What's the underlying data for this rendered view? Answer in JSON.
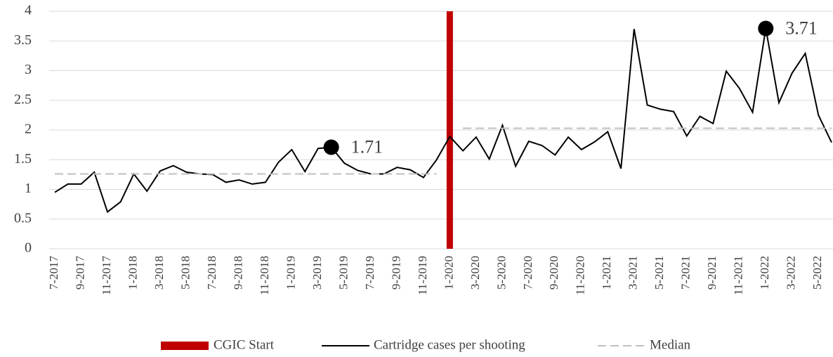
{
  "chart_data": {
    "type": "line",
    "categories": [
      "7-2017",
      null,
      "9-2017",
      null,
      "11-2017",
      null,
      "1-2018",
      null,
      "3-2018",
      null,
      "5-2018",
      null,
      "7-2018",
      null,
      "9-2018",
      null,
      "11-2018",
      null,
      "1-2019",
      null,
      "3-2019",
      null,
      "5-2019",
      null,
      "7-2019",
      null,
      "9-2019",
      null,
      "11-2019",
      null,
      "1-2020",
      null,
      "3-2020",
      null,
      "5-2020",
      null,
      "7-2020",
      null,
      "9-2020",
      null,
      "11-2020",
      null,
      "1-2021",
      null,
      "3-2021",
      null,
      "5-2021",
      null,
      "7-2021",
      null,
      "9-2021",
      null,
      "11-2021",
      null,
      "1-2022",
      null,
      "3-2022",
      null,
      "5-2022",
      null
    ],
    "series": [
      {
        "name": "Cartridge cases per shooting",
        "color": "#000000",
        "style": "solid",
        "values": [
          0.95,
          1.09,
          1.09,
          1.29,
          0.62,
          0.79,
          1.26,
          0.97,
          1.31,
          1.4,
          1.29,
          1.26,
          1.25,
          1.12,
          1.16,
          1.09,
          1.12,
          1.46,
          1.67,
          1.3,
          1.69,
          1.71,
          1.44,
          1.32,
          1.26,
          1.26,
          1.37,
          1.33,
          1.2,
          1.5,
          1.89,
          1.65,
          1.88,
          1.51,
          2.08,
          1.39,
          1.81,
          1.74,
          1.58,
          1.88,
          1.67,
          1.8,
          1.97,
          1.35,
          3.7,
          2.42,
          2.35,
          2.31,
          1.9,
          2.23,
          2.11,
          2.99,
          2.7,
          2.3,
          3.71,
          2.46,
          2.96,
          3.29,
          2.25,
          1.79
        ]
      },
      {
        "name": "Median",
        "color": "#bfbfbf",
        "style": "dashed",
        "values": [
          1.26,
          1.26,
          1.26,
          1.26,
          1.26,
          1.26,
          1.26,
          1.26,
          1.26,
          1.26,
          1.26,
          1.26,
          1.26,
          1.26,
          1.26,
          1.26,
          1.26,
          1.26,
          1.26,
          1.26,
          1.26,
          1.26,
          1.26,
          1.26,
          1.26,
          1.26,
          1.26,
          1.26,
          1.26,
          1.26,
          null,
          2.03,
          2.03,
          2.03,
          2.03,
          2.03,
          2.03,
          2.03,
          2.03,
          2.03,
          2.03,
          2.03,
          2.03,
          2.03,
          2.03,
          2.03,
          2.03,
          2.03,
          2.03,
          2.03,
          2.03,
          2.03,
          2.03,
          2.03,
          2.03,
          2.03,
          2.03,
          2.03,
          2.03,
          2.03
        ]
      }
    ],
    "data_labels": [
      null,
      null,
      null,
      null,
      null,
      null,
      null,
      null,
      null,
      null,
      null,
      null,
      null,
      null,
      null,
      null,
      null,
      null,
      null,
      null,
      null,
      1.71,
      null,
      null,
      null,
      null,
      null,
      null,
      null,
      null,
      null,
      null,
      null,
      null,
      null,
      null,
      null,
      null,
      null,
      null,
      null,
      null,
      null,
      null,
      null,
      null,
      null,
      null,
      null,
      null,
      null,
      null,
      null,
      null,
      3.71,
      null,
      null,
      null,
      null,
      null
    ],
    "event": {
      "name": "CGIC Start",
      "color": "#c00000",
      "category": "1-2020"
    },
    "ylim": [
      0,
      4
    ],
    "yticks": [
      0,
      0.5,
      1,
      1.5,
      2,
      2.5,
      3,
      3.5,
      4
    ],
    "grid": true
  }
}
